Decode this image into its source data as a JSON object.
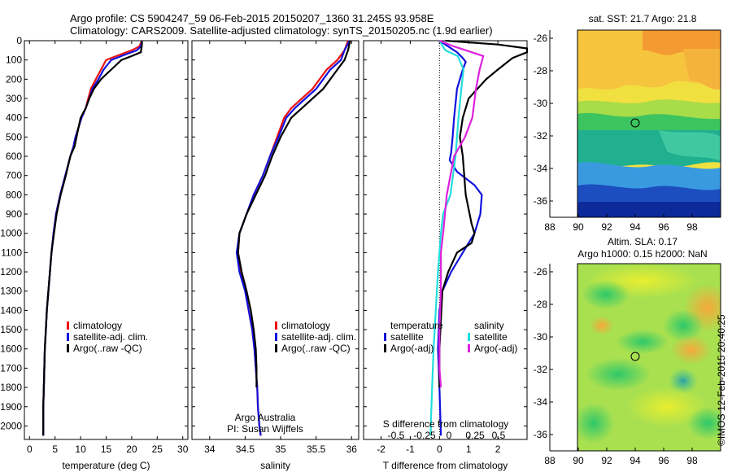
{
  "header": {
    "line1": "Argo profile: CS 5904247_59 06-Feb-2015 20150207_1360 31.245S 93.958E",
    "line2": "Climatology: CARS2009. Satellite-adjusted climatology: synTS_20150205.nc (1.9d earlier)"
  },
  "colors": {
    "climatology": "#ee1111",
    "satellite": "#1111dd",
    "argo": "#000000",
    "satellite_s": "#22dddd",
    "argo_s": "#dd22dd"
  },
  "chart_data": [
    {
      "type": "line",
      "name": "temperature-profile",
      "xlabel": "temperature (deg C)",
      "ylabel": "",
      "xlim": [
        -1,
        31
      ],
      "ylim": [
        2070,
        0
      ],
      "xticks": [
        0,
        5,
        10,
        15,
        20,
        25,
        30
      ],
      "yticks": [
        0,
        100,
        200,
        300,
        400,
        500,
        600,
        700,
        800,
        900,
        1000,
        1100,
        1200,
        1300,
        1400,
        1500,
        1600,
        1700,
        1800,
        1900,
        2000
      ],
      "legend": [
        "climatology",
        "satellite-adj. clim.",
        "Argo(..raw -QC)"
      ],
      "series": [
        {
          "name": "climatology",
          "color": "#ee1111",
          "x": [
            22,
            21.5,
            20,
            17,
            15,
            14,
            13,
            12,
            11.5,
            11,
            10.2,
            9,
            8.6,
            8,
            7,
            6,
            5.2,
            4.7,
            4.3,
            4,
            3.7,
            3.4,
            3.2,
            3,
            2.9,
            2.8,
            2.7,
            2.7
          ],
          "y": [
            0,
            30,
            50,
            80,
            100,
            150,
            200,
            250,
            300,
            350,
            400,
            500,
            550,
            600,
            700,
            800,
            900,
            1000,
            1100,
            1200,
            1300,
            1400,
            1500,
            1600,
            1700,
            1800,
            1900,
            2050
          ]
        },
        {
          "name": "satellite-adj. clim.",
          "color": "#1111dd",
          "x": [
            22,
            21.8,
            21,
            18,
            16,
            14.5,
            13.5,
            12.3,
            11.7,
            11,
            10.2,
            9,
            8.6,
            8,
            7,
            6,
            5.2,
            4.7,
            4.3,
            4,
            3.7,
            3.4,
            3.2,
            3,
            2.9,
            2.8,
            2.7,
            2.7
          ],
          "y": [
            0,
            30,
            50,
            80,
            100,
            150,
            200,
            250,
            300,
            350,
            400,
            500,
            550,
            600,
            700,
            800,
            900,
            1000,
            1100,
            1200,
            1300,
            1400,
            1500,
            1600,
            1700,
            1800,
            1900,
            2050
          ]
        },
        {
          "name": "Argo(..raw -QC)",
          "color": "#000000",
          "x": [
            22,
            22,
            21.8,
            20,
            18,
            16,
            14,
            12.6,
            11.7,
            11,
            10,
            9.2,
            8.8,
            8,
            7.1,
            6.1,
            5.3,
            4.8,
            4.3,
            4,
            3.7,
            3.4,
            3.2,
            3,
            2.9,
            2.8,
            2.7,
            2.7
          ],
          "y": [
            0,
            20,
            60,
            80,
            100,
            150,
            200,
            250,
            300,
            350,
            400,
            500,
            550,
            600,
            700,
            800,
            900,
            1000,
            1100,
            1200,
            1300,
            1400,
            1500,
            1600,
            1700,
            1800,
            1900,
            2050
          ]
        }
      ]
    },
    {
      "type": "line",
      "name": "salinity-profile",
      "xlabel": "salinity",
      "ylabel": "",
      "xlim": [
        33.75,
        36.1
      ],
      "ylim": [
        2070,
        0
      ],
      "xticks": [
        34,
        34.5,
        35,
        35.5,
        36
      ],
      "legend": [
        "climatology",
        "satellite-adj. clim.",
        "Argo(..raw -QC)"
      ],
      "annotation": [
        "Argo Australia",
        "PI: Susan Wijffels"
      ],
      "series": [
        {
          "name": "climatology",
          "color": "#ee1111",
          "x": [
            35.95,
            35.9,
            35.8,
            35.65,
            35.55,
            35.45,
            35.3,
            35.15,
            35.05,
            34.95,
            34.85,
            34.75,
            34.62,
            34.52,
            34.42,
            34.4,
            34.43,
            34.5,
            34.55,
            34.6,
            34.63,
            34.65,
            34.67,
            34.68,
            34.7,
            34.72
          ],
          "y": [
            0,
            50,
            100,
            150,
            200,
            250,
            300,
            350,
            400,
            500,
            600,
            700,
            800,
            900,
            1000,
            1100,
            1200,
            1300,
            1400,
            1500,
            1600,
            1700,
            1800,
            1900,
            2000,
            2050
          ]
        },
        {
          "name": "satellite-adj. clim.",
          "color": "#1111dd",
          "x": [
            35.97,
            35.9,
            35.85,
            35.7,
            35.6,
            35.5,
            35.35,
            35.2,
            35.08,
            34.97,
            34.85,
            34.75,
            34.62,
            34.52,
            34.42,
            34.38,
            34.42,
            34.5,
            34.55,
            34.6,
            34.63,
            34.65,
            34.67,
            34.68,
            34.7,
            34.72
          ],
          "y": [
            0,
            50,
            100,
            150,
            200,
            250,
            300,
            350,
            400,
            500,
            600,
            700,
            800,
            900,
            1000,
            1100,
            1200,
            1300,
            1400,
            1500,
            1600,
            1700,
            1800,
            1900,
            2000,
            2050
          ]
        },
        {
          "name": "Argo(..raw -QC)",
          "color": "#000000",
          "x": [
            35.98,
            35.95,
            35.9,
            35.8,
            35.7,
            35.6,
            35.45,
            35.3,
            35.15,
            35.0,
            34.88,
            34.78,
            34.65,
            34.52,
            34.42,
            34.4,
            34.45,
            34.52,
            34.58,
            34.62,
            34.65,
            34.66,
            34.66
          ],
          "y": [
            0,
            50,
            100,
            150,
            200,
            250,
            300,
            350,
            400,
            500,
            600,
            700,
            800,
            900,
            1000,
            1100,
            1200,
            1300,
            1400,
            1500,
            1600,
            1700,
            1800
          ]
        }
      ]
    },
    {
      "type": "line",
      "name": "difference-profile",
      "xlabel": "T difference from climatology",
      "xlabel_top": "S difference from climatology",
      "xlim": [
        -2.6,
        3.0
      ],
      "ylim": [
        2070,
        0
      ],
      "xticks": [
        -2,
        -1,
        0,
        1,
        2
      ],
      "s_ticks": [
        "-0.5",
        "-0.25",
        "0",
        "0.25",
        "0.5"
      ],
      "legend_temperature": {
        "title": "temperature",
        "items": [
          "satellite",
          "Argo(-adj)"
        ]
      },
      "legend_salinity": {
        "title": "salinity",
        "items": [
          "satellite",
          "Argo(-adj)"
        ]
      },
      "series": [
        {
          "name": "temperature satellite",
          "color": "#1111dd",
          "x": [
            0,
            0.3,
            0.6,
            0.8,
            0.9,
            0.8,
            0.6,
            0.5,
            0.45,
            0.4,
            0.35,
            0.6,
            1.2,
            1.45,
            1.4,
            1.2,
            0.8,
            0.4,
            0.1,
            0.0,
            -0.05,
            0.0,
            0.05
          ],
          "y": [
            0,
            30,
            60,
            90,
            110,
            150,
            250,
            400,
            500,
            580,
            620,
            680,
            750,
            800,
            900,
            1000,
            1100,
            1200,
            1300,
            1400,
            1600,
            1800,
            2050
          ]
        },
        {
          "name": "temperature Argo(-adj)",
          "color": "#000000",
          "x": [
            0.2,
            2.0,
            3.0,
            3.0,
            2.5,
            2.0,
            1.6,
            1.0,
            0.8,
            0.7,
            0.8,
            0.9,
            1.1,
            1.2,
            1.1,
            0.6,
            0.3,
            0.1,
            0.0,
            0.0
          ],
          "y": [
            0,
            20,
            40,
            60,
            90,
            150,
            200,
            300,
            400,
            500,
            600,
            800,
            950,
            1000,
            1050,
            1100,
            1200,
            1300,
            1600,
            1800
          ]
        },
        {
          "name": "salinity satellite",
          "color": "#22dddd",
          "x": [
            0,
            0.08,
            0.25,
            0.33,
            0.3,
            0.26,
            0.22,
            0.15,
            0.05,
            0.02,
            0.0,
            -0.02,
            -0.05,
            -0.08,
            -0.1,
            -0.12,
            -0.12
          ],
          "y": [
            0,
            50,
            80,
            150,
            250,
            400,
            600,
            800,
            900,
            1000,
            1100,
            1200,
            1400,
            1600,
            1800,
            2000,
            2050
          ]
        },
        {
          "name": "salinity Argo(-adj)",
          "color": "#dd22dd",
          "x": [
            0,
            0.2,
            0.6,
            0.55,
            0.5,
            0.45,
            0.35,
            0.2,
            0.1,
            0.05,
            0.02,
            0.02,
            0.0,
            0.0,
            0.02
          ],
          "y": [
            0,
            30,
            80,
            150,
            250,
            400,
            500,
            600,
            800,
            1000,
            1100,
            1300,
            1500,
            1700,
            1800
          ]
        }
      ]
    },
    {
      "type": "heatmap",
      "name": "sst-map",
      "title": "sat. SST: 21.7 Argo: 21.8",
      "xlim": [
        88,
        100
      ],
      "ylim": [
        -37,
        -25.5
      ],
      "xticks": [
        88,
        90,
        92,
        94,
        96,
        98
      ],
      "yticks": [
        -26,
        -28,
        -30,
        -32,
        -34,
        -36
      ],
      "marker": {
        "lon": 94.0,
        "lat": -31.2
      }
    },
    {
      "type": "heatmap",
      "name": "sla-map",
      "title": "Altim. SLA: 0.17",
      "subtitle": "Argo h1000: 0.15 h2000: NaN",
      "xlim": [
        88,
        100
      ],
      "ylim": [
        -37,
        -25.5
      ],
      "xticks": [
        88,
        90,
        92,
        94,
        96,
        98
      ],
      "yticks": [
        -26,
        -28,
        -30,
        -32,
        -34,
        -36
      ],
      "marker": {
        "lon": 94.0,
        "lat": -31.2
      }
    }
  ],
  "footer": {
    "stamp": "©IMOS 12-Feb-2015 20:40:25"
  }
}
